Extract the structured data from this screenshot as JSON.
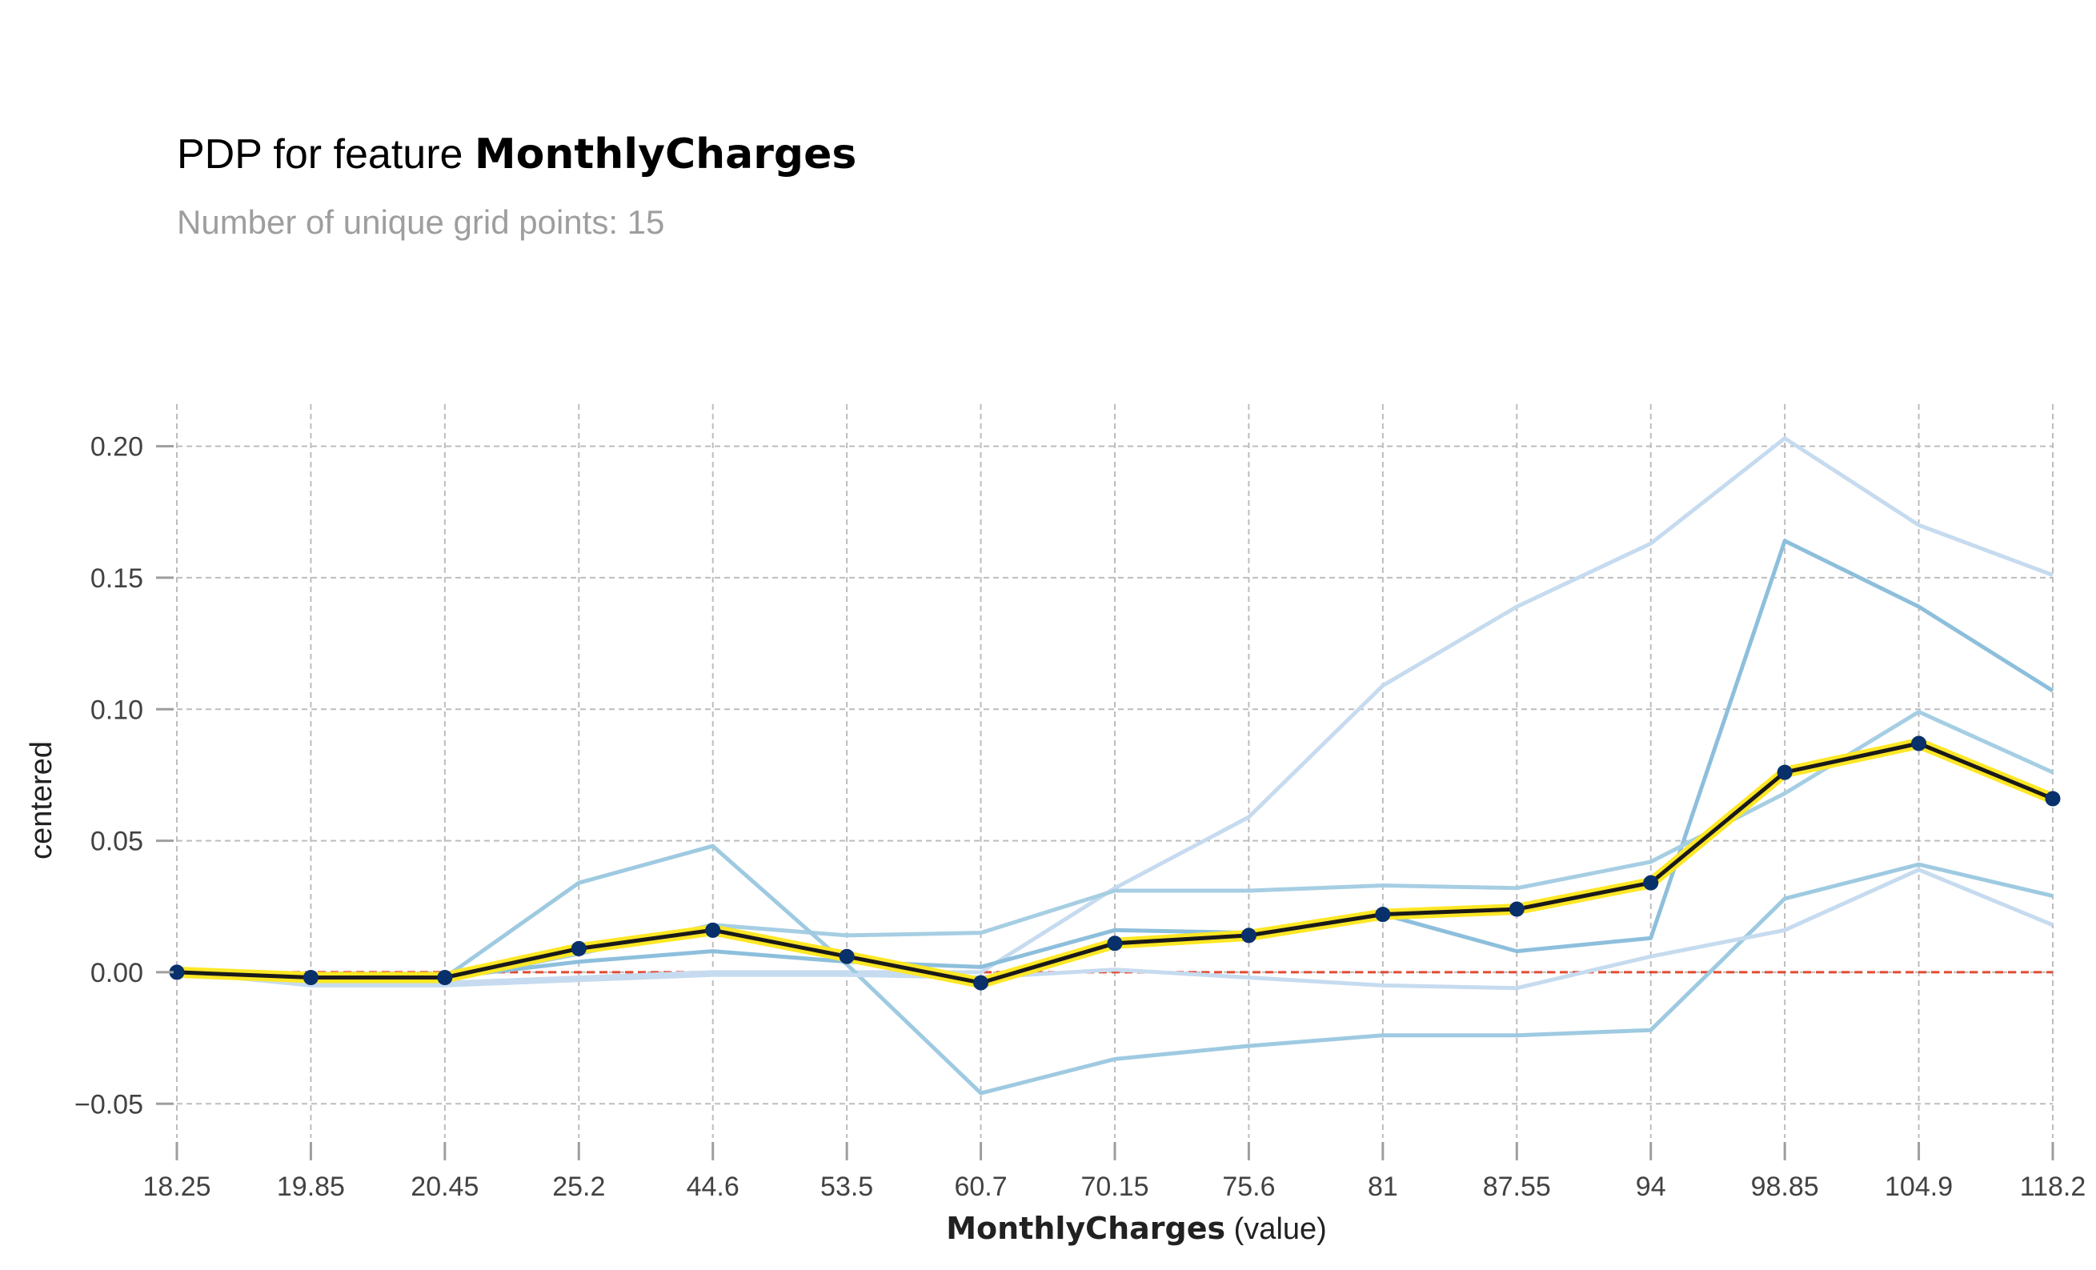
{
  "chart_data": {
    "type": "line",
    "title_prefix": "PDP for feature ",
    "title_feature": "MonthlyCharges",
    "subtitle": "Number of unique grid points: 15",
    "xlabel_bold": "MonthlyCharges",
    "xlabel_suffix": " (value)",
    "ylabel": "centered",
    "categories": [
      "18.25",
      "19.85",
      "20.45",
      "25.2",
      "44.6",
      "53.5",
      "60.7",
      "70.15",
      "75.6",
      "81",
      "87.55",
      "94",
      "98.85",
      "104.9",
      "118.2"
    ],
    "ylim": [
      -0.063,
      0.216
    ],
    "yticks": [
      -0.05,
      0.0,
      0.05,
      0.1,
      0.15,
      0.2
    ],
    "ytick_labels": [
      "−0.05",
      "0.00",
      "0.05",
      "0.10",
      "0.15",
      "0.20"
    ],
    "grid": true,
    "reference_line": 0.0,
    "pdp": {
      "color": "#1a1a1a",
      "band_color": "#fde725",
      "point_color": "#08306b",
      "values": [
        0.0,
        -0.002,
        -0.002,
        0.009,
        0.016,
        0.006,
        -0.004,
        0.011,
        0.014,
        0.022,
        0.024,
        0.034,
        0.076,
        0.087,
        0.066
      ]
    },
    "ice_lines": [
      {
        "color": "#c6dbef",
        "values": [
          0.0,
          -0.004,
          -0.004,
          -0.002,
          0.0,
          0.0,
          0.0,
          0.032,
          0.059,
          0.109,
          0.139,
          0.163,
          0.203,
          0.17,
          0.151
        ]
      },
      {
        "color": "#8dbfdc",
        "values": [
          0.0,
          -0.002,
          -0.002,
          0.004,
          0.008,
          0.004,
          0.002,
          0.016,
          0.015,
          0.022,
          0.008,
          0.013,
          0.164,
          0.139,
          0.107
        ]
      },
      {
        "color": "#a6cee3",
        "values": [
          0.0,
          -0.003,
          -0.003,
          0.007,
          0.018,
          0.014,
          0.015,
          0.031,
          0.031,
          0.033,
          0.032,
          0.042,
          0.068,
          0.099,
          0.076
        ]
      },
      {
        "color": "#9ecae1",
        "values": [
          0.0,
          -0.002,
          -0.002,
          0.034,
          0.048,
          0.003,
          -0.046,
          -0.033,
          -0.028,
          -0.024,
          -0.024,
          -0.022,
          0.028,
          0.041,
          0.029
        ]
      },
      {
        "color": "#c6dbef",
        "values": [
          0.0,
          -0.005,
          -0.005,
          -0.003,
          -0.001,
          -0.001,
          -0.002,
          0.001,
          -0.002,
          -0.005,
          -0.006,
          0.006,
          0.016,
          0.039,
          0.018
        ]
      }
    ]
  }
}
